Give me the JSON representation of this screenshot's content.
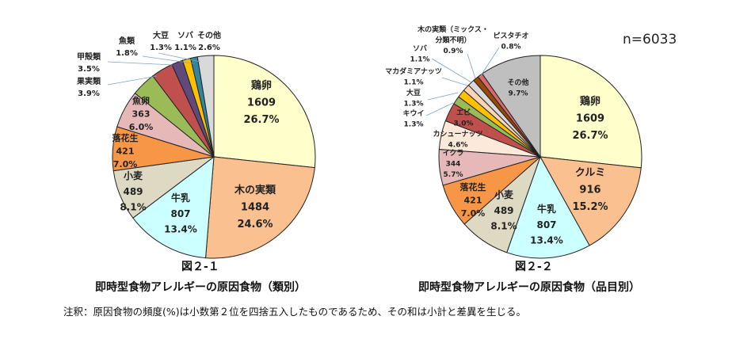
{
  "chart_data": [
    {
      "type": "pie",
      "figure_label": "図２-１",
      "title": "即時型食物アレルギーの原因食物（類別）",
      "slices": [
        {
          "name": "鶏卵",
          "count": "1609",
          "pct": 26.7,
          "pct_label": "26.7%",
          "color": "#FFFFCC"
        },
        {
          "name": "木の実類",
          "count": "1484",
          "pct": 24.6,
          "pct_label": "24.6%",
          "color": "#FAC090"
        },
        {
          "name": "牛乳",
          "count": "807",
          "pct": 13.4,
          "pct_label": "13.4%",
          "color": "#CCFFFF"
        },
        {
          "name": "小麦",
          "count": "489",
          "pct": 8.1,
          "pct_label": "8.1%",
          "color": "#DDD9C3"
        },
        {
          "name": "落花生",
          "count": "421",
          "pct": 7.0,
          "pct_label": "7.0%",
          "color": "#F79646"
        },
        {
          "name": "魚卵",
          "count": "363",
          "pct": 6.0,
          "pct_label": "6.0%",
          "color": "#E6B9B8"
        },
        {
          "name": "果実類",
          "pct": 3.9,
          "pct_label": "3.9%",
          "color": "#9BBB59"
        },
        {
          "name": "甲殻類",
          "pct": 3.5,
          "pct_label": "3.5%",
          "color": "#C0504D"
        },
        {
          "name": "魚類",
          "pct": 1.8,
          "pct_label": "1.8%",
          "color": "#604A7B"
        },
        {
          "name": "大豆",
          "pct": 1.3,
          "pct_label": "1.3%",
          "color": "#FFC000"
        },
        {
          "name": "ソバ",
          "pct": 1.1,
          "pct_label": "1.1%",
          "color": "#31859C"
        },
        {
          "name": "その他",
          "pct": 2.6,
          "pct_label": "2.6%",
          "color": "#D9D9D9"
        }
      ]
    },
    {
      "type": "pie",
      "figure_label": "図２-２",
      "title": "即時型食物アレルギーの原因食物（品目別）",
      "n_label": "n=6033",
      "slices": [
        {
          "name": "鶏卵",
          "count": "1609",
          "pct": 26.7,
          "pct_label": "26.7%",
          "color": "#FFFFCC"
        },
        {
          "name": "クルミ",
          "count": "916",
          "pct": 15.2,
          "pct_label": "15.2%",
          "color": "#FAC090"
        },
        {
          "name": "牛乳",
          "count": "807",
          "pct": 13.4,
          "pct_label": "13.4%",
          "color": "#CCFFFF"
        },
        {
          "name": "小麦",
          "count": "489",
          "pct": 8.1,
          "pct_label": "8.1%",
          "color": "#DDD9C3"
        },
        {
          "name": "落花生",
          "count": "421",
          "pct": 7.0,
          "pct_label": "7.0%",
          "color": "#F79646"
        },
        {
          "name": "イクラ",
          "count": "344",
          "pct": 5.7,
          "pct_label": "5.7%",
          "color": "#E6B9B8"
        },
        {
          "name": "カシューナッツ",
          "pct": 4.6,
          "pct_label": "4.6%",
          "color": "#FDE9D9"
        },
        {
          "name": "エビ",
          "pct": 3.0,
          "pct_label": "3.0%",
          "color": "#C0504D"
        },
        {
          "name": "キウイ",
          "pct": 1.3,
          "pct_label": "1.3%",
          "color": "#9BBB59"
        },
        {
          "name": "大豆",
          "pct": 1.3,
          "pct_label": "1.3%",
          "color": "#FFC000"
        },
        {
          "name": "マカダミアナッツ",
          "pct": 1.1,
          "pct_label": "1.1%",
          "color": "#FCD5B4"
        },
        {
          "name": "ソバ",
          "pct": 1.1,
          "pct_label": "1.1%",
          "color": "#D9D9D9"
        },
        {
          "name": "木の実類（ミックス・分類不明）",
          "name_line1": "木の実類（ミックス・",
          "name_line2": "分類不明）",
          "pct": 0.9,
          "pct_label": "0.9%",
          "color": "#984807"
        },
        {
          "name": "ピスタチオ",
          "pct": 0.8,
          "pct_label": "0.8%",
          "color": "#D9696B"
        },
        {
          "name": "その他",
          "pct": 9.7,
          "pct_label": "9.7%",
          "color": "#BFBFBF"
        }
      ]
    }
  ],
  "note": "注釈：原因食物の頻度(%)は小数第２位を四捨五入したものであるため、その和は小計と差異を生じる。"
}
